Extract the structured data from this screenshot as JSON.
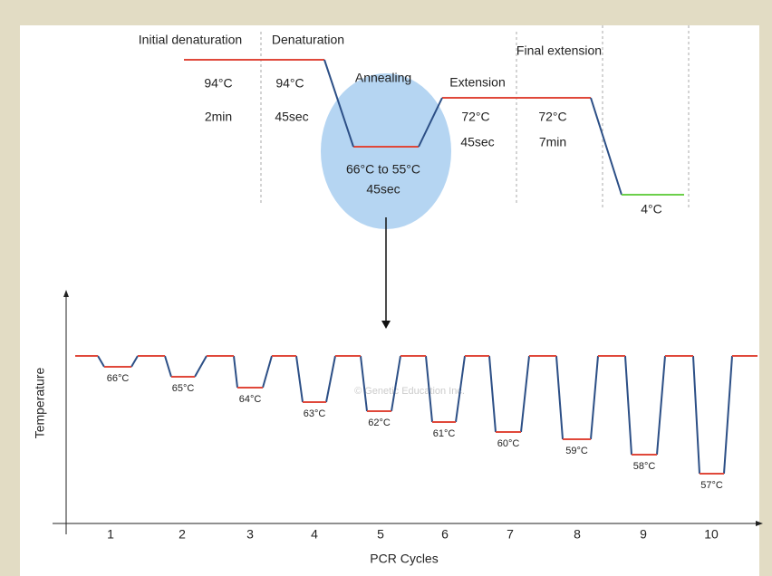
{
  "top_diagram": {
    "stages": {
      "initial_denaturation": "Initial denaturation",
      "denaturation": "Denaturation",
      "annealing": "Annealing",
      "extension": "Extension",
      "final_extension": "Final extension"
    },
    "temps": {
      "initial_denaturation": "94°C",
      "denaturation": "94°C",
      "annealing": "66°C to 55°C",
      "extension": "72°C",
      "final_extension": "72°C",
      "hold": "4°C"
    },
    "times": {
      "initial_denaturation": "2min",
      "denaturation": "45sec",
      "annealing": "45sec",
      "extension": "45sec",
      "final_extension": "7min"
    }
  },
  "cycle_chart": {
    "y_label": "Temperature",
    "x_label": "PCR Cycles",
    "cycles": [
      1,
      2,
      3,
      4,
      5,
      6,
      7,
      8,
      9,
      10
    ],
    "annealing_temps": [
      "66°C",
      "65°C",
      "64°C",
      "63°C",
      "62°C",
      "61°C",
      "60°C",
      "59°C",
      "58°C",
      "57°C"
    ],
    "watermark": "© Genetic Education Inc."
  }
}
